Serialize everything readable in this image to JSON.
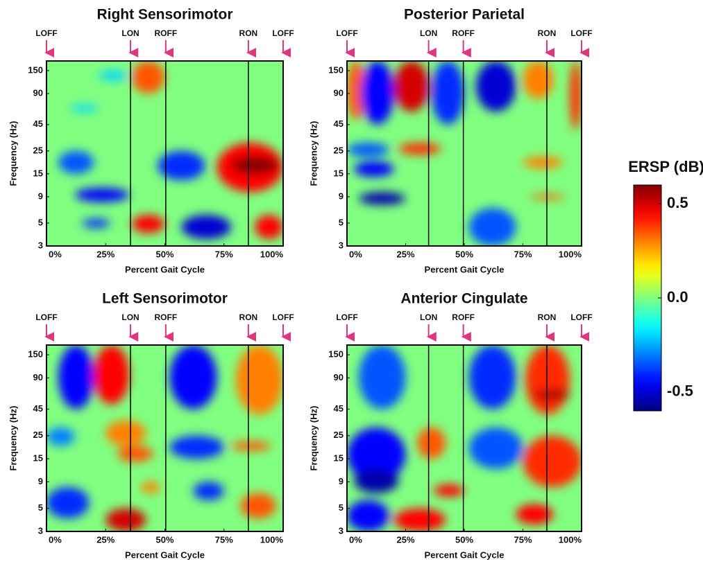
{
  "chart_data": [
    {
      "type": "heatmap",
      "title": "Right Sensorimotor",
      "xlabel": "Percent Gait Cycle",
      "ylabel": "Frequency (Hz)",
      "xlim": [
        0,
        100
      ],
      "ylim": [
        3,
        186
      ],
      "log_y": true,
      "xticks": [
        {
          "value": 0,
          "label": "0%"
        },
        {
          "value": 25,
          "label": "25%"
        },
        {
          "value": 50,
          "label": "50%"
        },
        {
          "value": 75,
          "label": "75%"
        },
        {
          "value": 100,
          "label": "100%"
        }
      ],
      "yticks": [
        3,
        5,
        9,
        15,
        25,
        45,
        90,
        150
      ],
      "events": [
        {
          "label": "LOFF",
          "x": 0
        },
        {
          "label": "LON",
          "x": 35.5
        },
        {
          "label": "ROFF",
          "x": 50.4
        },
        {
          "label": "RON",
          "x": 85.3
        },
        {
          "label": "LOFF",
          "x": 100
        }
      ],
      "blobs": [
        {
          "x": [
            5,
            20
          ],
          "f": [
            15,
            25
          ],
          "value": -0.35
        },
        {
          "x": [
            12,
            35
          ],
          "f": [
            8,
            11
          ],
          "value": -0.45
        },
        {
          "x": [
            15,
            27
          ],
          "f": [
            4.5,
            5.5
          ],
          "value": -0.4
        },
        {
          "x": [
            36,
            50
          ],
          "f": [
            90,
            186
          ],
          "value": 0.35
        },
        {
          "x": [
            36,
            50
          ],
          "f": [
            4,
            6
          ],
          "value": 0.45
        },
        {
          "x": [
            47,
            67
          ],
          "f": [
            13,
            25
          ],
          "value": -0.4
        },
        {
          "x": [
            57,
            78
          ],
          "f": [
            3.5,
            6
          ],
          "value": -0.5
        },
        {
          "x": [
            72,
            100
          ],
          "f": [
            10,
            30
          ],
          "value": 0.45
        },
        {
          "x": [
            78,
            98
          ],
          "f": [
            15,
            22
          ],
          "value": 0.6
        },
        {
          "x": [
            88,
            100
          ],
          "f": [
            3.5,
            6
          ],
          "value": 0.45
        },
        {
          "x": [
            22,
            35
          ],
          "f": [
            120,
            150
          ],
          "value": -0.2
        },
        {
          "x": [
            10,
            22
          ],
          "f": [
            60,
            70
          ],
          "value": -0.2
        }
      ]
    },
    {
      "type": "heatmap",
      "title": "Posterior Parietal",
      "xlabel": "Percent Gait Cycle",
      "ylabel": "Frequency (Hz)",
      "xlim": [
        0,
        100
      ],
      "ylim": [
        3,
        186
      ],
      "log_y": true,
      "xticks": [
        {
          "value": 0,
          "label": "0%"
        },
        {
          "value": 25,
          "label": "25%"
        },
        {
          "value": 50,
          "label": "50%"
        },
        {
          "value": 75,
          "label": "75%"
        },
        {
          "value": 100,
          "label": "100%"
        }
      ],
      "yticks": [
        3,
        5,
        9,
        15,
        25,
        45,
        90,
        150
      ],
      "events": [
        {
          "label": "LOFF",
          "x": 0
        },
        {
          "label": "LON",
          "x": 34.8
        },
        {
          "label": "ROFF",
          "x": 49.6
        },
        {
          "label": "RON",
          "x": 85.2
        },
        {
          "label": "LOFF",
          "x": 100
        }
      ],
      "blobs": [
        {
          "x": [
            0,
            8
          ],
          "f": [
            50,
            186
          ],
          "value": 0.35
        },
        {
          "x": [
            6,
            20
          ],
          "f": [
            45,
            186
          ],
          "value": -0.45
        },
        {
          "x": [
            20,
            35
          ],
          "f": [
            60,
            186
          ],
          "value": 0.5
        },
        {
          "x": [
            36,
            50
          ],
          "f": [
            45,
            186
          ],
          "value": -0.4
        },
        {
          "x": [
            55,
            72
          ],
          "f": [
            60,
            186
          ],
          "value": -0.5
        },
        {
          "x": [
            75,
            88
          ],
          "f": [
            80,
            186
          ],
          "value": 0.3
        },
        {
          "x": [
            95,
            100
          ],
          "f": [
            40,
            186
          ],
          "value": 0.4
        },
        {
          "x": [
            0,
            18
          ],
          "f": [
            22,
            30
          ],
          "value": -0.35
        },
        {
          "x": [
            22,
            40
          ],
          "f": [
            23,
            30
          ],
          "value": 0.4
        },
        {
          "x": [
            3,
            20
          ],
          "f": [
            14,
            20
          ],
          "value": -0.45
        },
        {
          "x": [
            5,
            25
          ],
          "f": [
            7.5,
            10
          ],
          "value": -0.55
        },
        {
          "x": [
            75,
            92
          ],
          "f": [
            17,
            22
          ],
          "value": 0.3
        },
        {
          "x": [
            78,
            93
          ],
          "f": [
            8.5,
            9.5
          ],
          "value": 0.35
        },
        {
          "x": [
            52,
            72
          ],
          "f": [
            3,
            7
          ],
          "value": -0.35
        }
      ]
    },
    {
      "type": "heatmap",
      "title": "Left Sensorimotor",
      "xlabel": "Percent Gait Cycle",
      "ylabel": "Frequency (Hz)",
      "xlim": [
        0,
        100
      ],
      "ylim": [
        3,
        186
      ],
      "log_y": true,
      "xticks": [
        {
          "value": 0,
          "label": "0%"
        },
        {
          "value": 25,
          "label": "25%"
        },
        {
          "value": 50,
          "label": "50%"
        },
        {
          "value": 75,
          "label": "75%"
        },
        {
          "value": 100,
          "label": "100%"
        }
      ],
      "yticks": [
        3,
        5,
        9,
        15,
        25,
        45,
        90,
        150
      ],
      "events": [
        {
          "label": "LOFF",
          "x": 0
        },
        {
          "label": "LON",
          "x": 35.5
        },
        {
          "label": "ROFF",
          "x": 50.4
        },
        {
          "label": "RON",
          "x": 85.3
        },
        {
          "label": "LOFF",
          "x": 100
        }
      ],
      "blobs": [
        {
          "x": [
            5,
            20
          ],
          "f": [
            45,
            186
          ],
          "value": -0.45
        },
        {
          "x": [
            20,
            35
          ],
          "f": [
            50,
            186
          ],
          "value": 0.45
        },
        {
          "x": [
            52,
            72
          ],
          "f": [
            45,
            186
          ],
          "value": -0.45
        },
        {
          "x": [
            80,
            100
          ],
          "f": [
            40,
            186
          ],
          "value": 0.3
        },
        {
          "x": [
            0,
            12
          ],
          "f": [
            20,
            30
          ],
          "value": -0.3
        },
        {
          "x": [
            25,
            42
          ],
          "f": [
            20,
            35
          ],
          "value": 0.3
        },
        {
          "x": [
            30,
            45
          ],
          "f": [
            14,
            20
          ],
          "value": 0.35
        },
        {
          "x": [
            52,
            75
          ],
          "f": [
            15,
            25
          ],
          "value": -0.4
        },
        {
          "x": [
            78,
            95
          ],
          "f": [
            18,
            22
          ],
          "value": 0.35
        },
        {
          "x": [
            0,
            18
          ],
          "f": [
            4,
            8
          ],
          "value": -0.4
        },
        {
          "x": [
            25,
            42
          ],
          "f": [
            3,
            5
          ],
          "value": 0.5
        },
        {
          "x": [
            40,
            48
          ],
          "f": [
            7,
            9
          ],
          "value": 0.3
        },
        {
          "x": [
            62,
            75
          ],
          "f": [
            6,
            9
          ],
          "value": -0.4
        },
        {
          "x": [
            82,
            97
          ],
          "f": [
            4,
            7
          ],
          "value": 0.35
        }
      ]
    },
    {
      "type": "heatmap",
      "title": "Anterior Cingulate",
      "xlabel": "Percent Gait Cycle",
      "ylabel": "Frequency (Hz)",
      "xlim": [
        0,
        100
      ],
      "ylim": [
        3,
        186
      ],
      "log_y": true,
      "xticks": [
        {
          "value": 0,
          "label": "0%"
        },
        {
          "value": 25,
          "label": "25%"
        },
        {
          "value": 50,
          "label": "50%"
        },
        {
          "value": 75,
          "label": "75%"
        },
        {
          "value": 100,
          "label": "100%"
        }
      ],
      "yticks": [
        3,
        5,
        9,
        15,
        25,
        45,
        90,
        150
      ],
      "events": [
        {
          "label": "LOFF",
          "x": 0
        },
        {
          "label": "LON",
          "x": 34.8
        },
        {
          "label": "ROFF",
          "x": 49.6
        },
        {
          "label": "RON",
          "x": 85.2
        },
        {
          "label": "LOFF",
          "x": 100
        }
      ],
      "blobs": [
        {
          "x": [
            5,
            25
          ],
          "f": [
            45,
            186
          ],
          "value": -0.35
        },
        {
          "x": [
            52,
            72
          ],
          "f": [
            45,
            186
          ],
          "value": -0.4
        },
        {
          "x": [
            76,
            95
          ],
          "f": [
            40,
            186
          ],
          "value": 0.4
        },
        {
          "x": [
            80,
            95
          ],
          "f": [
            55,
            70
          ],
          "value": 0.55
        },
        {
          "x": [
            0,
            25
          ],
          "f": [
            9,
            30
          ],
          "value": -0.45
        },
        {
          "x": [
            3,
            22
          ],
          "f": [
            7,
            12
          ],
          "value": -0.55
        },
        {
          "x": [
            30,
            42
          ],
          "f": [
            15,
            30
          ],
          "value": 0.35
        },
        {
          "x": [
            52,
            75
          ],
          "f": [
            12,
            30
          ],
          "value": -0.35
        },
        {
          "x": [
            75,
            100
          ],
          "f": [
            8,
            25
          ],
          "value": 0.4
        },
        {
          "x": [
            20,
            42
          ],
          "f": [
            3,
            5
          ],
          "value": 0.45
        },
        {
          "x": [
            37,
            50
          ],
          "f": [
            6.5,
            8.5
          ],
          "value": 0.45
        },
        {
          "x": [
            0,
            18
          ],
          "f": [
            3,
            6
          ],
          "value": -0.45
        },
        {
          "x": [
            72,
            88
          ],
          "f": [
            3.5,
            5.5
          ],
          "value": 0.45
        }
      ]
    }
  ],
  "colorbar": {
    "title": "ERSP (dB)",
    "colormap": "jet",
    "clim": [
      -0.6,
      0.6
    ],
    "ticks": [
      0.5,
      {
        "value": 0,
        "label": "0.0"
      },
      -0.5
    ]
  }
}
